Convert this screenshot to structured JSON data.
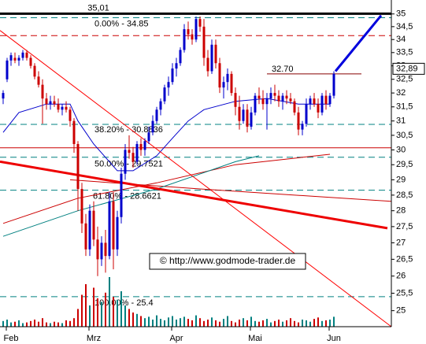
{
  "chart_data": {
    "type": "candlestick",
    "log": true,
    "ylim": [
      24.55,
      35.4
    ],
    "yticks": [
      25,
      {
        "value": 25.5,
        "label": "25,5"
      },
      26,
      {
        "value": 26.5,
        "label": "26,5"
      },
      27,
      {
        "value": 27.5,
        "label": "27,5"
      },
      28,
      {
        "value": 28.5,
        "label": "28,5"
      },
      29,
      {
        "value": 29.5,
        "label": "29,5"
      },
      30,
      {
        "value": 30.5,
        "label": "30,5"
      },
      31,
      {
        "value": 31.5,
        "label": "31,5"
      },
      32,
      {
        "value": 32.5,
        "label": "32,5"
      },
      33,
      {
        "value": 33.5,
        "label": "33,5"
      },
      34,
      {
        "value": 34.5,
        "label": "34,5"
      },
      35
    ],
    "xticks": [
      {
        "value": 2,
        "label": "Feb"
      },
      {
        "value": 23,
        "label": "Mrz"
      },
      {
        "value": 44,
        "label": "Apr"
      },
      {
        "value": 64,
        "label": "Mai"
      },
      {
        "value": 84,
        "label": "Jun"
      }
    ],
    "up_color": "#0000cc",
    "down_color": "#cc0000",
    "open": [
      31.8,
      32.5,
      33.2,
      33.3,
      33.2,
      33.3,
      33.5,
      33.3,
      33.0,
      32.6,
      32.3,
      31.8,
      31.6,
      31.7,
      31.6,
      31.4,
      31.5,
      31.4,
      31.0,
      30.2,
      28.7,
      27.6,
      26.8,
      28.0,
      27.1,
      26.5,
      27.0,
      26.6,
      28.3,
      26.8,
      27.8,
      29.2,
      30.0,
      29.9,
      29.6,
      30.2,
      30.0,
      30.3,
      30.6,
      31.0,
      31.4,
      31.7,
      32.2,
      32.4,
      32.9,
      33.1,
      33.6,
      34.4,
      34.2,
      34.0,
      34.8,
      34.5,
      33.3,
      32.8,
      33.8,
      33.1,
      32.2,
      32.4,
      32.7,
      32.0,
      31.5,
      31.0,
      31.4,
      30.8,
      31.3,
      31.9,
      31.8,
      31.6,
      31.8,
      32.0,
      31.9,
      31.7,
      31.9,
      31.8,
      31.7,
      31.3,
      30.7,
      30.9,
      31.6,
      31.8,
      31.6,
      31.3,
      31.9,
      31.6,
      31.9
    ],
    "high": [
      32.1,
      33.3,
      33.5,
      33.5,
      33.4,
      33.6,
      33.6,
      33.4,
      33.1,
      32.8,
      32.5,
      32.0,
      31.9,
      31.9,
      31.8,
      31.6,
      31.7,
      31.5,
      31.1,
      30.3,
      28.9,
      27.9,
      28.2,
      28.3,
      27.5,
      27.2,
      27.4,
      28.6,
      28.6,
      28.0,
      29.4,
      30.2,
      30.5,
      30.1,
      30.3,
      30.4,
      30.4,
      30.8,
      31.2,
      31.5,
      31.8,
      32.3,
      32.6,
      33.1,
      33.3,
      33.7,
      34.6,
      34.7,
      34.4,
      34.9,
      34.9,
      34.8,
      33.6,
      34.0,
      34.0,
      33.3,
      32.6,
      32.9,
      32.8,
      32.2,
      31.9,
      31.6,
      31.6,
      31.5,
      32.0,
      32.2,
      32.1,
      32.0,
      32.2,
      32.3,
      32.1,
      32.0,
      32.1,
      32.0,
      31.8,
      31.5,
      31.0,
      31.8,
      31.9,
      32.0,
      31.8,
      32.0,
      32.1,
      32.0,
      32.8
    ],
    "low": [
      31.6,
      32.4,
      33.0,
      33.1,
      33.0,
      33.2,
      33.2,
      32.9,
      32.5,
      32.2,
      30.9,
      31.4,
      31.4,
      31.5,
      31.3,
      31.2,
      31.3,
      30.8,
      29.9,
      28.0,
      27.3,
      26.6,
      26.6,
      26.9,
      26.0,
      26.3,
      26.1,
      26.5,
      26.2,
      26.6,
      27.6,
      29.0,
      29.7,
      29.4,
      29.5,
      29.8,
      29.8,
      30.2,
      30.5,
      30.9,
      31.2,
      31.6,
      31.9,
      32.3,
      32.6,
      33.0,
      33.5,
      34.0,
      33.8,
      33.9,
      34.3,
      33.0,
      32.6,
      32.7,
      32.9,
      32.0,
      31.8,
      32.1,
      31.9,
      31.2,
      30.7,
      30.9,
      30.6,
      30.7,
      31.2,
      31.6,
      31.4,
      30.7,
      31.6,
      31.7,
      31.5,
      31.4,
      31.6,
      31.6,
      31.2,
      30.5,
      30.5,
      30.8,
      31.4,
      31.5,
      31.1,
      31.2,
      31.4,
      31.5,
      31.8
    ],
    "close": [
      32.0,
      33.2,
      33.4,
      33.2,
      33.3,
      33.5,
      33.3,
      33.0,
      32.6,
      32.3,
      31.8,
      31.6,
      31.7,
      31.6,
      31.4,
      31.5,
      31.4,
      31.0,
      30.2,
      28.7,
      27.6,
      26.8,
      28.0,
      27.1,
      26.5,
      27.0,
      26.6,
      28.3,
      26.8,
      27.8,
      29.2,
      30.0,
      29.9,
      29.6,
      30.2,
      30.0,
      30.3,
      30.6,
      31.0,
      31.4,
      31.7,
      32.2,
      32.4,
      32.9,
      33.1,
      33.6,
      34.4,
      34.2,
      34.0,
      34.8,
      34.5,
      33.3,
      32.8,
      33.8,
      33.1,
      32.2,
      32.4,
      32.7,
      32.0,
      31.5,
      31.0,
      31.4,
      30.8,
      31.3,
      31.9,
      31.8,
      31.6,
      31.8,
      32.0,
      31.9,
      31.7,
      31.9,
      31.8,
      31.7,
      31.3,
      30.7,
      30.9,
      31.6,
      31.8,
      31.6,
      31.3,
      31.9,
      31.6,
      31.9,
      32.7
    ],
    "volume": [
      8,
      10,
      6,
      7,
      9,
      5,
      6,
      8,
      10,
      7,
      12,
      6,
      5,
      7,
      6,
      5,
      9,
      8,
      12,
      25,
      45,
      60,
      30,
      55,
      40,
      35,
      48,
      70,
      42,
      38,
      50,
      30,
      25,
      20,
      18,
      15,
      12,
      14,
      10,
      16,
      11,
      9,
      13,
      15,
      10,
      12,
      14,
      11,
      9,
      16,
      12,
      8,
      10,
      13,
      9,
      7,
      11,
      15,
      8,
      6,
      10,
      12,
      9,
      14,
      8,
      7,
      9,
      11,
      6,
      8,
      10,
      7,
      9,
      12,
      8,
      6,
      10,
      9,
      7,
      11,
      13,
      8,
      9,
      10,
      14
    ],
    "volume_max": 100,
    "lines": [
      {
        "color": "#0000cc",
        "width": 1,
        "x": [
          0,
          4,
          11,
          17,
          19,
          23,
          29,
          33,
          39,
          43,
          47,
          51,
          59,
          67,
          75,
          83
        ],
        "values": [
          30.6,
          31.3,
          31.6,
          31.6,
          31.0,
          30.2,
          29.3,
          29.3,
          29.8,
          30.4,
          31.0,
          31.4,
          31.7,
          31.8,
          31.6,
          31.6
        ]
      },
      {
        "color": "#cc0000",
        "width": 1,
        "x": [
          0,
          19,
          39,
          59,
          83
        ],
        "values": [
          27.6,
          28.4,
          28.9,
          29.5,
          29.85
        ]
      },
      {
        "color": "#cc0000",
        "width": 1,
        "x": [
          17,
          50,
          98.6
        ],
        "values": [
          29.0,
          28.7,
          28.3
        ]
      },
      {
        "color": "#008080",
        "width": 1,
        "x": [
          0,
          19,
          39,
          59,
          65
        ],
        "values": [
          27.2,
          28.0,
          28.7,
          29.6,
          29.8
        ]
      },
      {
        "color": "#ff0000",
        "width": 1,
        "x": [
          -0.8,
          98.6
        ],
        "values": [
          34.35,
          24.55
        ]
      },
      {
        "color": "#ee0000",
        "width": 3,
        "x": [
          -0.8,
          97.6
        ],
        "values": [
          29.6,
          27.45
        ]
      },
      {
        "color": "#0000dd",
        "width": 3,
        "x": [
          84.4,
          96
        ],
        "values": [
          32.8,
          34.94
        ]
      }
    ],
    "levels": [
      {
        "value": 35.01,
        "label": "35,01",
        "color": "#000000",
        "width": 3
      },
      {
        "value": 34.85,
        "label": "0.00% - 34.85",
        "color": "#008080",
        "dash": true
      },
      {
        "value": 34.15,
        "color": "#cc0000",
        "dash": true
      },
      {
        "value": 30.88,
        "label": "38.20% - 30.8836",
        "color": "#008080",
        "dash": true
      },
      {
        "value": 30.07,
        "color": "#cc0000"
      },
      {
        "value": 29.75,
        "label": "50.00% - 29.7521",
        "color": "#008080",
        "dash": true
      },
      {
        "value": 28.66,
        "label": "61.80% - 28.6621",
        "color": "#008080",
        "dash": true
      },
      {
        "value": 25.4,
        "label": "100.00% - 25.4",
        "color": "#008080",
        "dash": true
      },
      {
        "value": 32.7,
        "label": "32.70",
        "color": "#880000",
        "x": [
          67,
          91
        ]
      }
    ],
    "last_price": {
      "value": 32.89,
      "label": "32,89"
    },
    "watermark": "© http://www.godmode-trader.de"
  }
}
